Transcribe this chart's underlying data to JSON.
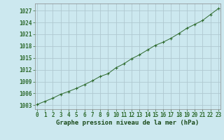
{
  "x": [
    0,
    1,
    2,
    3,
    4,
    5,
    6,
    7,
    8,
    9,
    10,
    11,
    12,
    13,
    14,
    15,
    16,
    17,
    18,
    19,
    20,
    21,
    22,
    23
  ],
  "y": [
    1003.2,
    1004.0,
    1004.8,
    1005.8,
    1006.5,
    1007.3,
    1008.2,
    1009.2,
    1010.3,
    1011.0,
    1012.5,
    1013.5,
    1014.8,
    1015.8,
    1017.0,
    1018.2,
    1019.0,
    1020.0,
    1021.2,
    1022.5,
    1023.5,
    1024.5,
    1026.0,
    1027.5
  ],
  "line_color": "#2d6a2d",
  "marker_color": "#2d6a2d",
  "bg_color": "#cce8ef",
  "grid_color": "#b0c8d0",
  "axis_color": "#888888",
  "xlabel": "Graphe pression niveau de la mer (hPa)",
  "xlabel_color": "#1a4a1a",
  "xlabel_fontsize": 6.5,
  "tick_label_color": "#2d6a2d",
  "tick_fontsize": 5.5,
  "ytick_labels": [
    1003,
    1006,
    1009,
    1012,
    1015,
    1018,
    1021,
    1024,
    1027
  ],
  "ylim": [
    1002.0,
    1028.8
  ],
  "xlim": [
    -0.3,
    23.3
  ]
}
